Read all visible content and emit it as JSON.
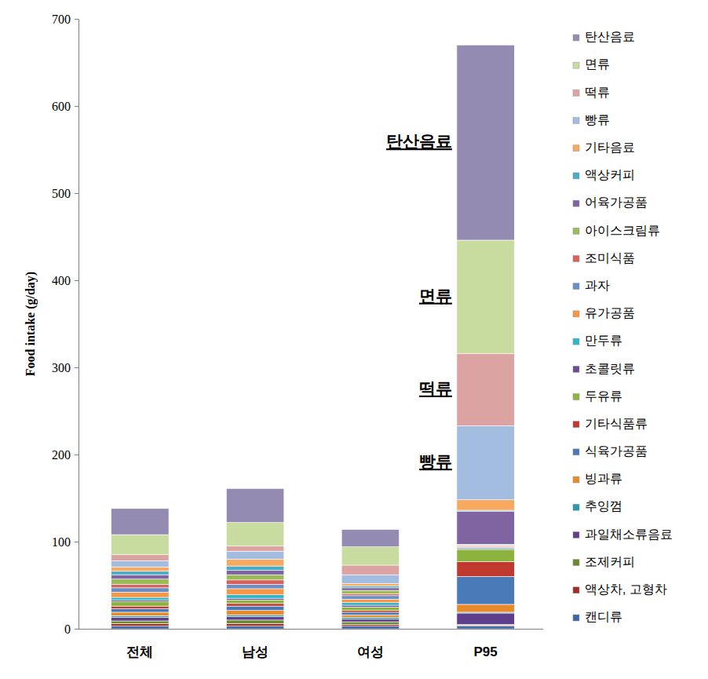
{
  "chart_data": {
    "type": "bar",
    "stacked": true,
    "y_label": "Food intake (g/day)",
    "categories": [
      "전체",
      "남성",
      "여성",
      "P95"
    ],
    "ylim": [
      0,
      700
    ],
    "yticks": [
      0,
      100,
      200,
      300,
      400,
      500,
      600,
      700
    ],
    "legend": "right",
    "annotations": [
      {
        "text": "탄산음료",
        "category": "P95"
      },
      {
        "text": "면류",
        "category": "P95"
      },
      {
        "text": "떡류",
        "category": "P95"
      },
      {
        "text": "빵류",
        "category": "P95"
      }
    ],
    "series": [
      {
        "name": "탄산음료",
        "color": "#948bb3",
        "values": [
          30,
          39,
          20,
          224
        ]
      },
      {
        "name": "면류",
        "color": "#c9dca0",
        "values": [
          23,
          27,
          21,
          130
        ]
      },
      {
        "name": "떡류",
        "color": "#dba3a1",
        "values": [
          7,
          6,
          11,
          83
        ]
      },
      {
        "name": "빵류",
        "color": "#a3bde0",
        "values": [
          7,
          9,
          10,
          85
        ]
      },
      {
        "name": "기타음료",
        "color": "#f7a960",
        "values": [
          5,
          8,
          3,
          12
        ]
      },
      {
        "name": "액상커피",
        "color": "#4bacc6",
        "values": [
          4,
          5,
          2,
          1
        ]
      },
      {
        "name": "어육가공품",
        "color": "#8064a2",
        "values": [
          5,
          5,
          3,
          38
        ]
      },
      {
        "name": "아이스크림류",
        "color": "#9bbb59",
        "values": [
          6,
          6,
          4,
          1
        ]
      },
      {
        "name": "조미식품",
        "color": "#d9605c",
        "values": [
          4,
          5,
          2,
          1
        ]
      },
      {
        "name": "과자",
        "color": "#6a8fc4",
        "values": [
          5,
          5,
          4,
          1
        ]
      },
      {
        "name": "유가공품",
        "color": "#f79646",
        "values": [
          6,
          7,
          4,
          1
        ]
      },
      {
        "name": "만두류",
        "color": "#31b6c9",
        "values": [
          3,
          4,
          3,
          1
        ]
      },
      {
        "name": "초콜릿류",
        "color": "#6a4e94",
        "values": [
          2,
          2,
          2,
          1
        ]
      },
      {
        "name": "두유류",
        "color": "#8db33f",
        "values": [
          5,
          4,
          4,
          14
        ]
      },
      {
        "name": "기타식품류",
        "color": "#c0392f",
        "values": [
          3,
          3,
          2,
          17
        ]
      },
      {
        "name": "식육가공품",
        "color": "#4a79b8",
        "values": [
          4,
          5,
          3,
          32
        ]
      },
      {
        "name": "빙과류",
        "color": "#e88a2a",
        "values": [
          4,
          5,
          3,
          9
        ]
      },
      {
        "name": "추잉껌",
        "color": "#2a9aa8",
        "values": [
          2,
          2,
          2,
          1
        ]
      },
      {
        "name": "과일채소류음료",
        "color": "#5f3f8c",
        "values": [
          4,
          4,
          3,
          13
        ]
      },
      {
        "name": "조제커피",
        "color": "#6b8a2e",
        "values": [
          3,
          4,
          3,
          1
        ]
      },
      {
        "name": "액상차, 고형차",
        "color": "#a52a24",
        "values": [
          3,
          3,
          2,
          1
        ]
      },
      {
        "name": "캔디류",
        "color": "#3a68a8",
        "values": [
          3,
          3,
          3,
          3
        ]
      }
    ]
  }
}
